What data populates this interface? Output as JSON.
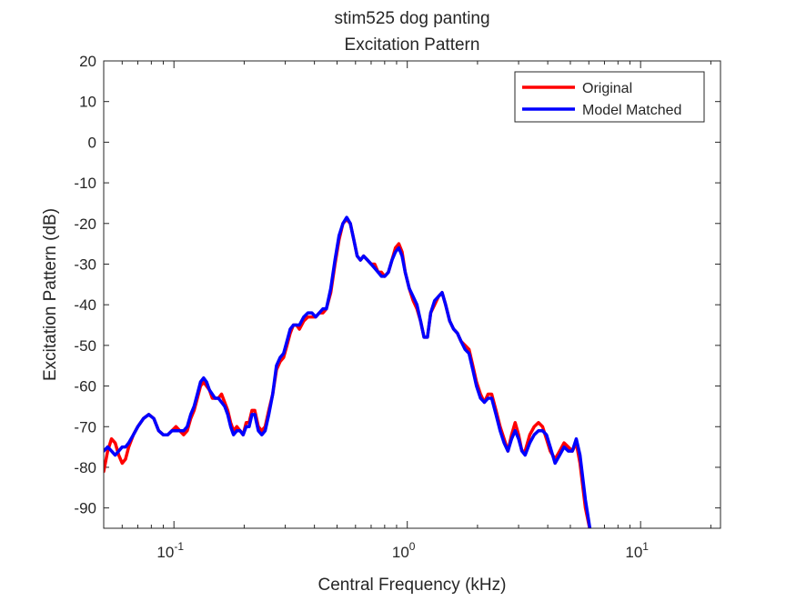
{
  "chart_data": {
    "type": "line",
    "title_line1": "stim525 dog panting",
    "title_line2": "Excitation Pattern",
    "xlabel": "Central Frequency (kHz)",
    "ylabel": "Excitation Pattern (dB)",
    "xscale": "log",
    "xlim": [
      0.05,
      22
    ],
    "ylim": [
      -95,
      20
    ],
    "yticks": [
      20,
      10,
      0,
      -10,
      -20,
      -30,
      -40,
      -50,
      -60,
      -70,
      -80,
      -90
    ],
    "xticks": [
      {
        "value": 0.1,
        "base": "10",
        "exp": "-1"
      },
      {
        "value": 1,
        "base": "10",
        "exp": "0"
      },
      {
        "value": 10,
        "base": "10",
        "exp": "1"
      }
    ],
    "grid": false,
    "legend_position": "top-right",
    "series": [
      {
        "name": "Original",
        "color": "#ff0000",
        "points": [
          [
            0.05,
            -81
          ],
          [
            0.052,
            -76
          ],
          [
            0.054,
            -73
          ],
          [
            0.056,
            -74
          ],
          [
            0.058,
            -77
          ],
          [
            0.06,
            -79
          ],
          [
            0.062,
            -78
          ],
          [
            0.064,
            -75
          ],
          [
            0.067,
            -72
          ],
          [
            0.07,
            -70
          ],
          [
            0.074,
            -68
          ],
          [
            0.078,
            -67
          ],
          [
            0.082,
            -68
          ],
          [
            0.086,
            -71
          ],
          [
            0.09,
            -72
          ],
          [
            0.094,
            -72
          ],
          [
            0.098,
            -71
          ],
          [
            0.102,
            -70
          ],
          [
            0.106,
            -71
          ],
          [
            0.11,
            -72
          ],
          [
            0.114,
            -71
          ],
          [
            0.118,
            -68
          ],
          [
            0.122,
            -66
          ],
          [
            0.126,
            -63
          ],
          [
            0.13,
            -60
          ],
          [
            0.134,
            -59
          ],
          [
            0.138,
            -60
          ],
          [
            0.142,
            -61
          ],
          [
            0.146,
            -63
          ],
          [
            0.15,
            -63
          ],
          [
            0.155,
            -63
          ],
          [
            0.16,
            -62
          ],
          [
            0.165,
            -64
          ],
          [
            0.17,
            -66
          ],
          [
            0.175,
            -69
          ],
          [
            0.18,
            -71
          ],
          [
            0.186,
            -70
          ],
          [
            0.192,
            -71
          ],
          [
            0.198,
            -72
          ],
          [
            0.204,
            -69
          ],
          [
            0.21,
            -69
          ],
          [
            0.216,
            -66
          ],
          [
            0.222,
            -66
          ],
          [
            0.23,
            -70
          ],
          [
            0.238,
            -71
          ],
          [
            0.246,
            -70
          ],
          [
            0.255,
            -66
          ],
          [
            0.265,
            -62
          ],
          [
            0.275,
            -56
          ],
          [
            0.285,
            -54
          ],
          [
            0.295,
            -53
          ],
          [
            0.305,
            -50
          ],
          [
            0.315,
            -47
          ],
          [
            0.325,
            -45
          ],
          [
            0.335,
            -45
          ],
          [
            0.345,
            -46
          ],
          [
            0.36,
            -44
          ],
          [
            0.375,
            -43
          ],
          [
            0.39,
            -43
          ],
          [
            0.405,
            -43
          ],
          [
            0.42,
            -42
          ],
          [
            0.435,
            -42
          ],
          [
            0.45,
            -41
          ],
          [
            0.47,
            -37
          ],
          [
            0.49,
            -30
          ],
          [
            0.51,
            -24
          ],
          [
            0.53,
            -20
          ],
          [
            0.55,
            -19
          ],
          [
            0.57,
            -20
          ],
          [
            0.59,
            -24
          ],
          [
            0.61,
            -28
          ],
          [
            0.63,
            -29
          ],
          [
            0.65,
            -28
          ],
          [
            0.675,
            -29
          ],
          [
            0.7,
            -30
          ],
          [
            0.725,
            -30
          ],
          [
            0.75,
            -32
          ],
          [
            0.775,
            -32
          ],
          [
            0.8,
            -33
          ],
          [
            0.83,
            -32
          ],
          [
            0.86,
            -29
          ],
          [
            0.89,
            -26
          ],
          [
            0.92,
            -25
          ],
          [
            0.95,
            -27
          ],
          [
            0.98,
            -32
          ],
          [
            1.02,
            -36
          ],
          [
            1.06,
            -39
          ],
          [
            1.1,
            -41
          ],
          [
            1.14,
            -44
          ],
          [
            1.18,
            -48
          ],
          [
            1.22,
            -48
          ],
          [
            1.26,
            -42
          ],
          [
            1.31,
            -40
          ],
          [
            1.36,
            -38
          ],
          [
            1.41,
            -37
          ],
          [
            1.46,
            -40
          ],
          [
            1.52,
            -44
          ],
          [
            1.58,
            -46
          ],
          [
            1.64,
            -47
          ],
          [
            1.7,
            -49
          ],
          [
            1.77,
            -50
          ],
          [
            1.84,
            -51
          ],
          [
            1.91,
            -55
          ],
          [
            1.98,
            -59
          ],
          [
            2.06,
            -62
          ],
          [
            2.14,
            -64
          ],
          [
            2.22,
            -62
          ],
          [
            2.3,
            -62
          ],
          [
            2.4,
            -66
          ],
          [
            2.5,
            -70
          ],
          [
            2.6,
            -73
          ],
          [
            2.7,
            -76
          ],
          [
            2.8,
            -72
          ],
          [
            2.9,
            -69
          ],
          [
            3.0,
            -72
          ],
          [
            3.1,
            -76
          ],
          [
            3.2,
            -76
          ],
          [
            3.35,
            -72
          ],
          [
            3.5,
            -70
          ],
          [
            3.65,
            -69
          ],
          [
            3.8,
            -70
          ],
          [
            3.95,
            -73
          ],
          [
            4.1,
            -76
          ],
          [
            4.3,
            -78
          ],
          [
            4.5,
            -76
          ],
          [
            4.7,
            -74
          ],
          [
            4.9,
            -75
          ],
          [
            5.1,
            -76
          ],
          [
            5.3,
            -74
          ],
          [
            5.5,
            -79
          ],
          [
            5.8,
            -90
          ],
          [
            6.1,
            -96
          ]
        ]
      },
      {
        "name": "Model Matched",
        "color": "#0000ff",
        "points": [
          [
            0.05,
            -76
          ],
          [
            0.052,
            -75
          ],
          [
            0.054,
            -76
          ],
          [
            0.056,
            -77
          ],
          [
            0.058,
            -76
          ],
          [
            0.06,
            -75
          ],
          [
            0.062,
            -75
          ],
          [
            0.064,
            -74
          ],
          [
            0.067,
            -72
          ],
          [
            0.07,
            -70
          ],
          [
            0.074,
            -68
          ],
          [
            0.078,
            -67
          ],
          [
            0.082,
            -68
          ],
          [
            0.086,
            -71
          ],
          [
            0.09,
            -72
          ],
          [
            0.094,
            -72
          ],
          [
            0.098,
            -71
          ],
          [
            0.102,
            -71
          ],
          [
            0.106,
            -71
          ],
          [
            0.11,
            -71
          ],
          [
            0.114,
            -70
          ],
          [
            0.118,
            -67
          ],
          [
            0.122,
            -65
          ],
          [
            0.126,
            -62
          ],
          [
            0.13,
            -59
          ],
          [
            0.134,
            -58
          ],
          [
            0.138,
            -59
          ],
          [
            0.142,
            -61
          ],
          [
            0.146,
            -62
          ],
          [
            0.15,
            -63
          ],
          [
            0.155,
            -63
          ],
          [
            0.16,
            -64
          ],
          [
            0.165,
            -65
          ],
          [
            0.17,
            -67
          ],
          [
            0.175,
            -70
          ],
          [
            0.18,
            -72
          ],
          [
            0.186,
            -71
          ],
          [
            0.192,
            -71
          ],
          [
            0.198,
            -72
          ],
          [
            0.204,
            -70
          ],
          [
            0.21,
            -70
          ],
          [
            0.216,
            -67
          ],
          [
            0.222,
            -67
          ],
          [
            0.23,
            -71
          ],
          [
            0.238,
            -72
          ],
          [
            0.246,
            -71
          ],
          [
            0.255,
            -67
          ],
          [
            0.265,
            -62
          ],
          [
            0.275,
            -55
          ],
          [
            0.285,
            -53
          ],
          [
            0.295,
            -52
          ],
          [
            0.305,
            -49
          ],
          [
            0.315,
            -46
          ],
          [
            0.325,
            -45
          ],
          [
            0.335,
            -45
          ],
          [
            0.345,
            -45
          ],
          [
            0.36,
            -43
          ],
          [
            0.375,
            -42
          ],
          [
            0.39,
            -42
          ],
          [
            0.405,
            -43
          ],
          [
            0.42,
            -42
          ],
          [
            0.435,
            -41
          ],
          [
            0.45,
            -41
          ],
          [
            0.47,
            -36
          ],
          [
            0.49,
            -29
          ],
          [
            0.51,
            -23
          ],
          [
            0.53,
            -20
          ],
          [
            0.55,
            -18.5
          ],
          [
            0.57,
            -20
          ],
          [
            0.59,
            -24
          ],
          [
            0.61,
            -28
          ],
          [
            0.63,
            -29
          ],
          [
            0.65,
            -28
          ],
          [
            0.675,
            -29
          ],
          [
            0.7,
            -30
          ],
          [
            0.725,
            -31
          ],
          [
            0.75,
            -32
          ],
          [
            0.775,
            -33
          ],
          [
            0.8,
            -33
          ],
          [
            0.83,
            -32
          ],
          [
            0.86,
            -29
          ],
          [
            0.89,
            -27
          ],
          [
            0.92,
            -26
          ],
          [
            0.95,
            -28
          ],
          [
            0.98,
            -32
          ],
          [
            1.02,
            -36
          ],
          [
            1.06,
            -38
          ],
          [
            1.1,
            -40
          ],
          [
            1.14,
            -44
          ],
          [
            1.18,
            -48
          ],
          [
            1.22,
            -48
          ],
          [
            1.26,
            -42
          ],
          [
            1.31,
            -39
          ],
          [
            1.36,
            -38
          ],
          [
            1.41,
            -37
          ],
          [
            1.46,
            -40
          ],
          [
            1.52,
            -44
          ],
          [
            1.58,
            -46
          ],
          [
            1.64,
            -47
          ],
          [
            1.7,
            -49
          ],
          [
            1.77,
            -51
          ],
          [
            1.84,
            -52
          ],
          [
            1.91,
            -56
          ],
          [
            1.98,
            -60
          ],
          [
            2.06,
            -63
          ],
          [
            2.14,
            -64
          ],
          [
            2.22,
            -63
          ],
          [
            2.3,
            -63
          ],
          [
            2.4,
            -67
          ],
          [
            2.5,
            -71
          ],
          [
            2.6,
            -74
          ],
          [
            2.7,
            -76
          ],
          [
            2.8,
            -73
          ],
          [
            2.9,
            -71
          ],
          [
            3.0,
            -73
          ],
          [
            3.1,
            -76
          ],
          [
            3.2,
            -77
          ],
          [
            3.35,
            -74
          ],
          [
            3.5,
            -72
          ],
          [
            3.65,
            -71
          ],
          [
            3.8,
            -71
          ],
          [
            3.95,
            -72
          ],
          [
            4.1,
            -75
          ],
          [
            4.3,
            -79
          ],
          [
            4.5,
            -77
          ],
          [
            4.7,
            -75
          ],
          [
            4.9,
            -76
          ],
          [
            5.1,
            -76
          ],
          [
            5.3,
            -73
          ],
          [
            5.5,
            -77
          ],
          [
            5.8,
            -88
          ],
          [
            6.1,
            -96
          ]
        ]
      }
    ]
  }
}
